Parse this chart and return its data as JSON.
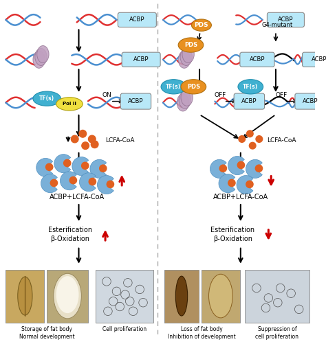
{
  "bg_color": "#ffffff",
  "red": "#e03030",
  "blue": "#4a8fd0",
  "black": "#222222",
  "acbp_box_color": "#b8e8f8",
  "tf_color": "#40b0d0",
  "polii_color": "#f0e040",
  "pds_color": "#e89020",
  "lcfa_color": "#e06020",
  "pacman_color": "#7ab0d8",
  "up_arrow_color": "#cc0000",
  "down_arrow_color": "#cc0000",
  "helicase_color": "#c0a0c0",
  "helicase_edge": "#907090",
  "left_labels": {
    "lcfa": "LCFA-CoA",
    "complex": "ACBP+LCFA-CoA",
    "ester": "Esterification",
    "beta": "β-Oxidation",
    "photo1": "Storage of fat body\nNormal development",
    "photo2": "Cell proliferation"
  },
  "right_labels": {
    "pds": "PDS",
    "g4": "G4-mutant",
    "lcfa": "LCFA-CoA",
    "complex": "ACBP+LCFA-CoA",
    "ester": "Esterification",
    "beta": "β-Oxidation",
    "photo1": "Loss of fat body\nInhibition of development",
    "photo2": "Suppression of\ncell proliferation"
  }
}
